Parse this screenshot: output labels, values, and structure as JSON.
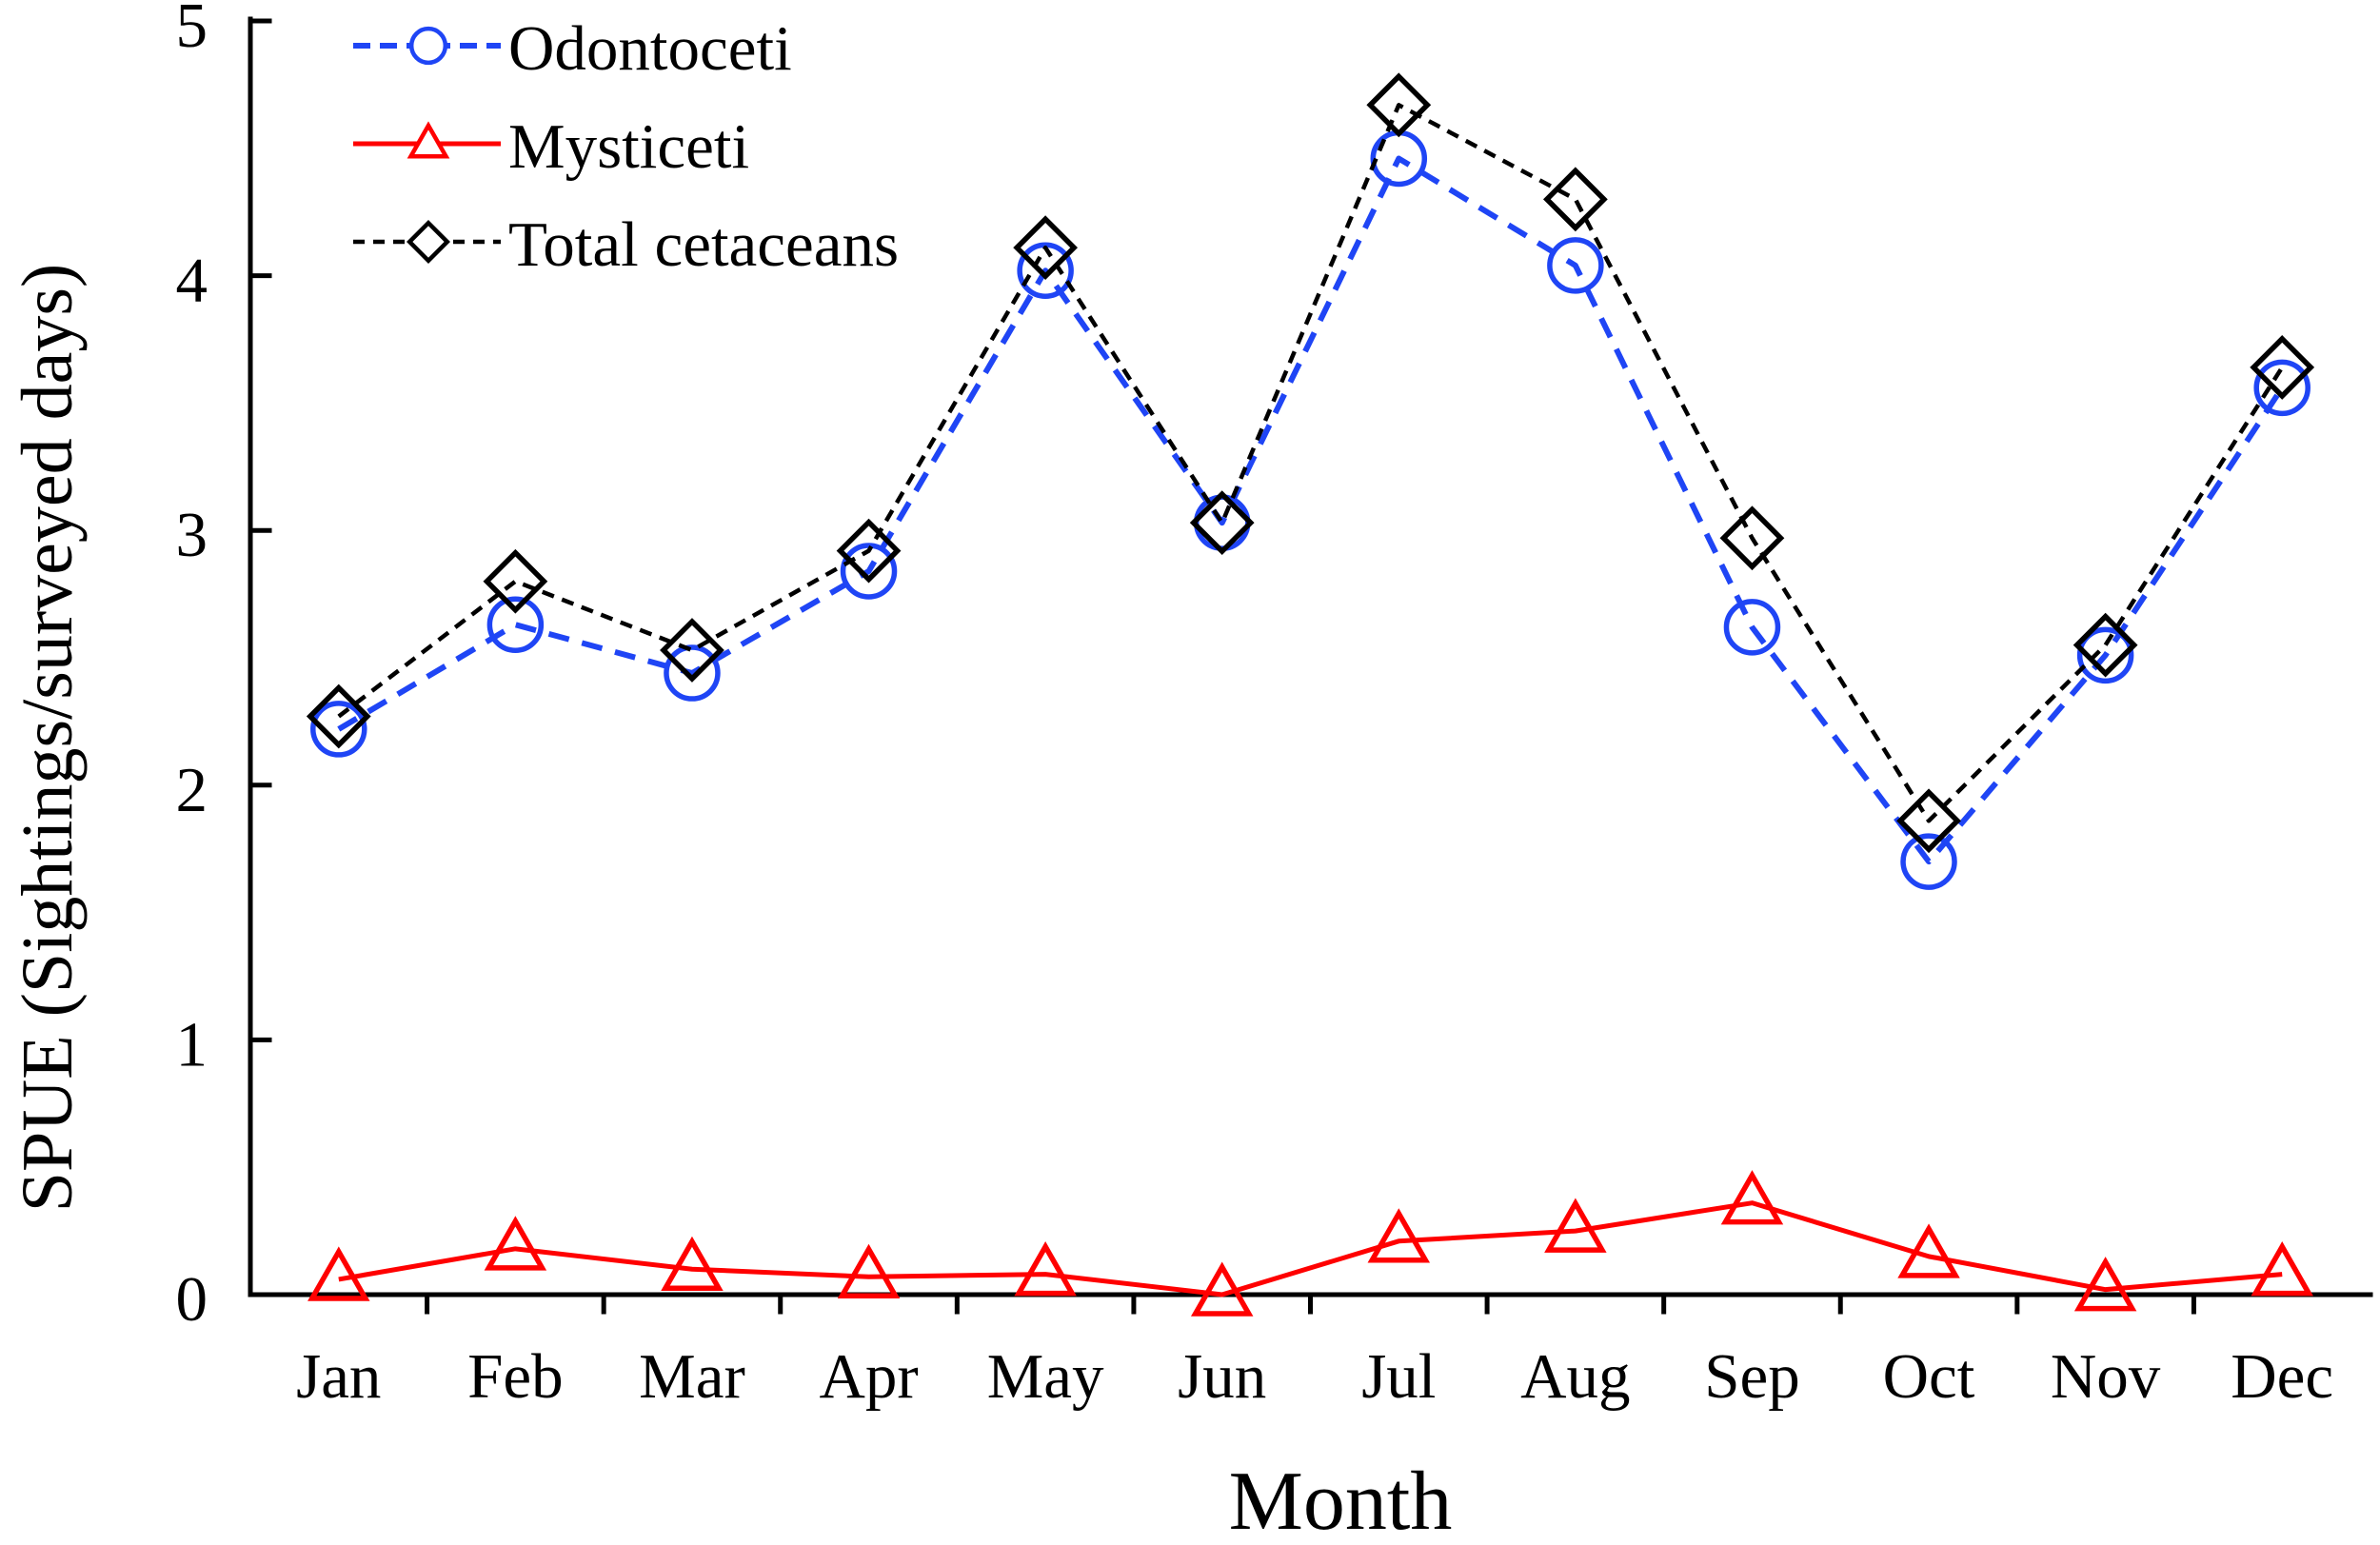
{
  "chart_data": {
    "type": "line",
    "title": "",
    "xlabel": "Month",
    "ylabel": "SPUE (Sightings/surveyed days)",
    "categories": [
      "Jan",
      "Feb",
      "Mar",
      "Apr",
      "May",
      "Jun",
      "Jul",
      "Aug",
      "Sep",
      "Oct",
      "Nov",
      "Dec"
    ],
    "ylim": [
      0,
      5
    ],
    "yticks": [
      0,
      1,
      2,
      3,
      4,
      5
    ],
    "grid": false,
    "legend_position": "top-left",
    "series": [
      {
        "name": "Odontoceti",
        "color": "#1f45f5",
        "line_style": "dashed",
        "marker": "circle",
        "values": [
          2.22,
          2.63,
          2.44,
          2.84,
          4.02,
          3.03,
          4.46,
          4.04,
          2.62,
          1.7,
          2.51,
          3.56
        ]
      },
      {
        "name": "Mysticeti",
        "color": "#ff0000",
        "line_style": "solid",
        "marker": "triangle",
        "values": [
          0.06,
          0.18,
          0.1,
          0.07,
          0.08,
          0.0,
          0.21,
          0.25,
          0.36,
          0.15,
          0.02,
          0.08
        ]
      },
      {
        "name": "Total cetaceans",
        "color": "#000000",
        "line_style": "dashed",
        "marker": "diamond",
        "values": [
          2.27,
          2.8,
          2.53,
          2.92,
          4.11,
          3.03,
          4.67,
          4.3,
          2.97,
          1.86,
          2.55,
          3.64
        ]
      }
    ]
  }
}
